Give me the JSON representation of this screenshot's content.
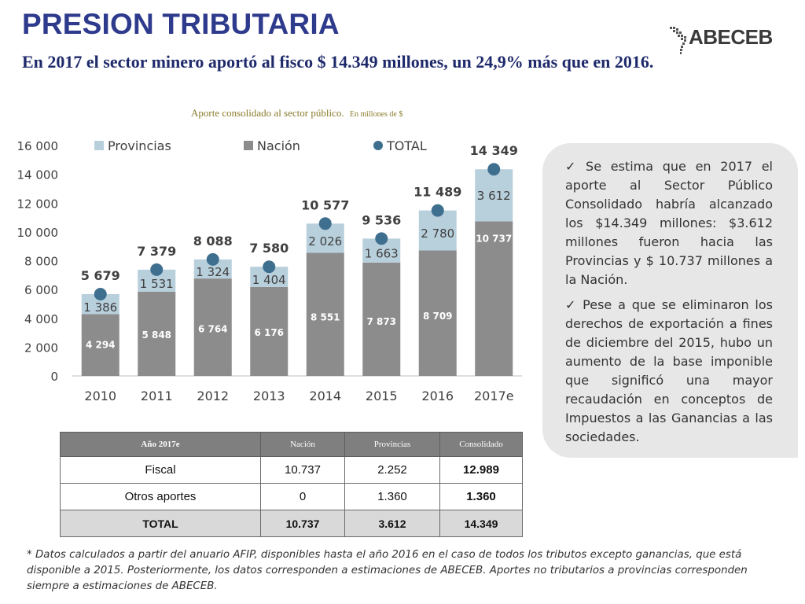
{
  "title": "PRESION TRIBUTARIA",
  "subtitle": "En 2017 el sector minero aportó al fisco $ 14.349 millones, un 24,9% más que en 2016.",
  "logo": {
    "text": "ABECEB",
    "icon": "america-map-icon"
  },
  "chart_caption": {
    "main": "Aporte consolidado al sector público.",
    "unit": "En millones de $"
  },
  "colors": {
    "provincias": "#b8cfdc",
    "nacion": "#8c8c8c",
    "total": "#3f6f8f",
    "title": "#2e3a8c"
  },
  "chart_data": {
    "type": "bar",
    "stacked": true,
    "categories": [
      "2010",
      "2011",
      "2012",
      "2013",
      "2014",
      "2015",
      "2016",
      "2017e"
    ],
    "series": [
      {
        "name": "Nación",
        "values": [
          4294,
          5848,
          6764,
          6176,
          8551,
          7873,
          8709,
          10737
        ]
      },
      {
        "name": "Provincias",
        "values": [
          1386,
          1531,
          1324,
          1404,
          2026,
          1663,
          2780,
          3612
        ]
      },
      {
        "name": "TOTAL",
        "type": "scatter",
        "values": [
          5679,
          7379,
          8088,
          7580,
          10577,
          9536,
          11489,
          14349
        ]
      }
    ],
    "value_labels": {
      "nacion": [
        "4 294",
        "5 848",
        "6 764",
        "6 176",
        "8 551",
        "7 873",
        "8 709",
        "10 737"
      ],
      "provincias": [
        "1 386",
        "1 531",
        "1 324",
        "1 404",
        "2 026",
        "1 663",
        "2 780",
        "3 612"
      ],
      "total": [
        "5 679",
        "7 379",
        "8 088",
        "7 580",
        "10 577",
        "9 536",
        "11 489",
        "14 349"
      ]
    },
    "y_ticks": [
      0,
      2000,
      4000,
      6000,
      8000,
      10000,
      12000,
      14000,
      16000
    ],
    "y_tick_labels": [
      "0",
      "2 000",
      "4 000",
      "6 000",
      "8 000",
      "10 000",
      "12 000",
      "14 000",
      "16 000"
    ],
    "ylim": [
      0,
      16000
    ],
    "legend": {
      "placement": "top",
      "entries": [
        {
          "label": "Provincias",
          "marker": "square"
        },
        {
          "label": "Nación",
          "marker": "square"
        },
        {
          "label": "TOTAL",
          "marker": "circle"
        }
      ]
    },
    "grid": false
  },
  "info_box": {
    "bullets": [
      "Se estima que en 2017 el aporte al Sector Público Consolidado habría alcanzado los $14.349 millones: $3.612 millones fueron hacia las Provincias y $ 10.737 millones a la Nación.",
      "Pese a que se eliminaron los derechos de exportación a fines de diciembre del 2015, hubo un aumento de la base imponible que significó una mayor recaudación en conceptos de Impuestos a las Ganancias a las sociedades."
    ]
  },
  "table": {
    "headers": [
      "Año 2017e",
      "Nación",
      "Provincias",
      "Consolidado"
    ],
    "rows": [
      [
        "Fiscal",
        "10.737",
        "2.252",
        "12.989"
      ],
      [
        "Otros aportes",
        "0",
        "1.360",
        "1.360"
      ],
      [
        "TOTAL",
        "10.737",
        "3.612",
        "14.349"
      ]
    ]
  },
  "footnote": "* Datos calculados a partir del anuario AFIP, disponibles hasta el año 2016 en el caso de todos los tributos excepto ganancias, que está disponible a 2015. Posteriormente, los datos corresponden a estimaciones de ABECEB. Aportes no tributarios a provincias corresponden siempre a estimaciones de ABECEB."
}
